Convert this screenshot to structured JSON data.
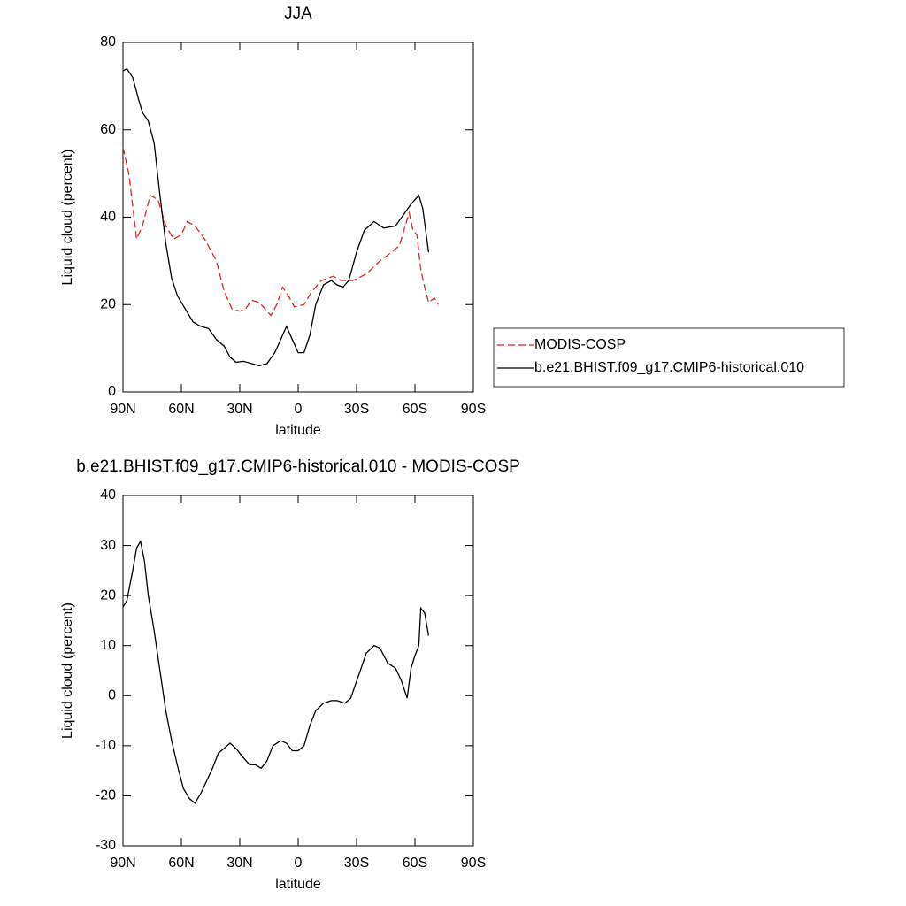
{
  "chart_data": [
    {
      "type": "line",
      "title": "JJA",
      "xlabel": "latitude",
      "ylabel": "Liquid cloud (percent)",
      "xlim": [
        90,
        -90
      ],
      "ylim": [
        0,
        80
      ],
      "xticks": [
        {
          "value": 90,
          "label": "90N"
        },
        {
          "value": 60,
          "label": "60N"
        },
        {
          "value": 30,
          "label": "30N"
        },
        0,
        {
          "value": -30,
          "label": "30S"
        },
        {
          "value": -60,
          "label": "60S"
        },
        {
          "value": -90,
          "label": "90S"
        }
      ],
      "yticks": [
        0,
        20,
        40,
        60,
        80
      ],
      "legend": "right",
      "series": [
        {
          "name": "MODIS-COSP",
          "color": "#e8221f",
          "line_style": "dashed",
          "x": [
            90,
            87,
            83,
            80,
            76,
            72,
            68,
            64,
            60,
            57,
            53,
            48,
            42,
            38,
            34,
            30,
            27,
            24,
            20,
            17,
            14,
            11,
            8,
            5,
            2,
            -3,
            -7,
            -12,
            -18,
            -22,
            -28,
            -35,
            -42,
            -48,
            -52,
            -55,
            -57,
            -59,
            -61,
            -63,
            -65,
            -67,
            -70,
            -72
          ],
          "values": [
            56,
            50,
            35,
            38,
            45,
            44,
            38,
            35,
            36,
            39,
            38,
            35,
            30,
            23,
            19,
            18.5,
            19,
            21,
            20.5,
            19,
            17.5,
            20,
            24,
            22,
            19.5,
            20,
            23,
            25.5,
            26.5,
            25.5,
            25.5,
            27,
            30,
            32,
            33.5,
            38,
            41,
            37,
            36,
            28,
            24,
            20.5,
            21.5,
            20
          ]
        },
        {
          "name": "b.e21.BHIST.f09_g17.CMIP6-historical.010",
          "color": "#000000",
          "line_style": "solid",
          "x": [
            90,
            88,
            85,
            82,
            80,
            77,
            74,
            71,
            68,
            65,
            62,
            58,
            54,
            50,
            46,
            42,
            38,
            35,
            32,
            28,
            24,
            20,
            16,
            12,
            9,
            6,
            3,
            0,
            -3,
            -6,
            -9,
            -13,
            -17,
            -20,
            -23,
            -26,
            -30,
            -34,
            -39,
            -44,
            -50,
            -54,
            -58,
            -62,
            -64,
            -67
          ],
          "values": [
            73.5,
            74,
            72,
            67,
            64,
            62,
            57,
            45,
            34,
            26,
            22,
            19,
            16,
            15,
            14.5,
            12,
            10.5,
            8,
            6.8,
            7,
            6.5,
            6,
            6.5,
            9,
            12,
            15,
            12,
            9,
            9,
            13,
            20,
            24.5,
            25.5,
            24.5,
            24,
            25.5,
            32,
            37,
            39,
            37.5,
            38,
            40.5,
            43,
            45,
            42,
            32
          ]
        }
      ]
    },
    {
      "type": "line",
      "title": "b.e21.BHIST.f09_g17.CMIP6-historical.010 - MODIS-COSP",
      "xlabel": "latitude",
      "ylabel": "Liquid cloud (percent)",
      "xlim": [
        90,
        -90
      ],
      "ylim": [
        -30,
        40
      ],
      "xticks": [
        {
          "value": 90,
          "label": "90N"
        },
        {
          "value": 60,
          "label": "60N"
        },
        {
          "value": 30,
          "label": "30N"
        },
        0,
        {
          "value": -30,
          "label": "30S"
        },
        {
          "value": -60,
          "label": "60S"
        },
        {
          "value": -90,
          "label": "90S"
        }
      ],
      "yticks": [
        -30,
        -20,
        -10,
        0,
        10,
        20,
        30,
        40
      ],
      "color": "#000000",
      "line_style": "solid",
      "x": [
        90,
        88,
        85,
        83,
        81,
        79,
        77,
        74,
        71,
        68,
        65,
        62,
        59,
        56,
        53,
        50,
        47,
        44,
        41,
        38,
        35,
        32,
        29,
        25,
        22,
        19,
        16,
        13,
        9,
        6,
        3,
        0,
        -3,
        -6,
        -9,
        -13,
        -17,
        -20,
        -24,
        -27,
        -31,
        -35,
        -39,
        -42,
        -46,
        -50,
        -53,
        -56,
        -58,
        -60,
        -62,
        -63,
        -65,
        -67
      ],
      "values": [
        17.7,
        19,
        25,
        29.5,
        30.8,
        27,
        20,
        13,
        5,
        -3,
        -9,
        -14,
        -18.5,
        -20.5,
        -21.5,
        -19.5,
        -17,
        -14.5,
        -11.5,
        -10.5,
        -9.5,
        -10.5,
        -12,
        -13.8,
        -13.8,
        -14.5,
        -13,
        -10,
        -9,
        -9.5,
        -11,
        -11,
        -10,
        -6,
        -3,
        -1.5,
        -1,
        -1,
        -1.5,
        -0.5,
        4,
        8.5,
        10,
        9.5,
        6.5,
        5.5,
        3,
        -0.5,
        5.5,
        8,
        10,
        17.5,
        16.5,
        12
      ]
    }
  ]
}
